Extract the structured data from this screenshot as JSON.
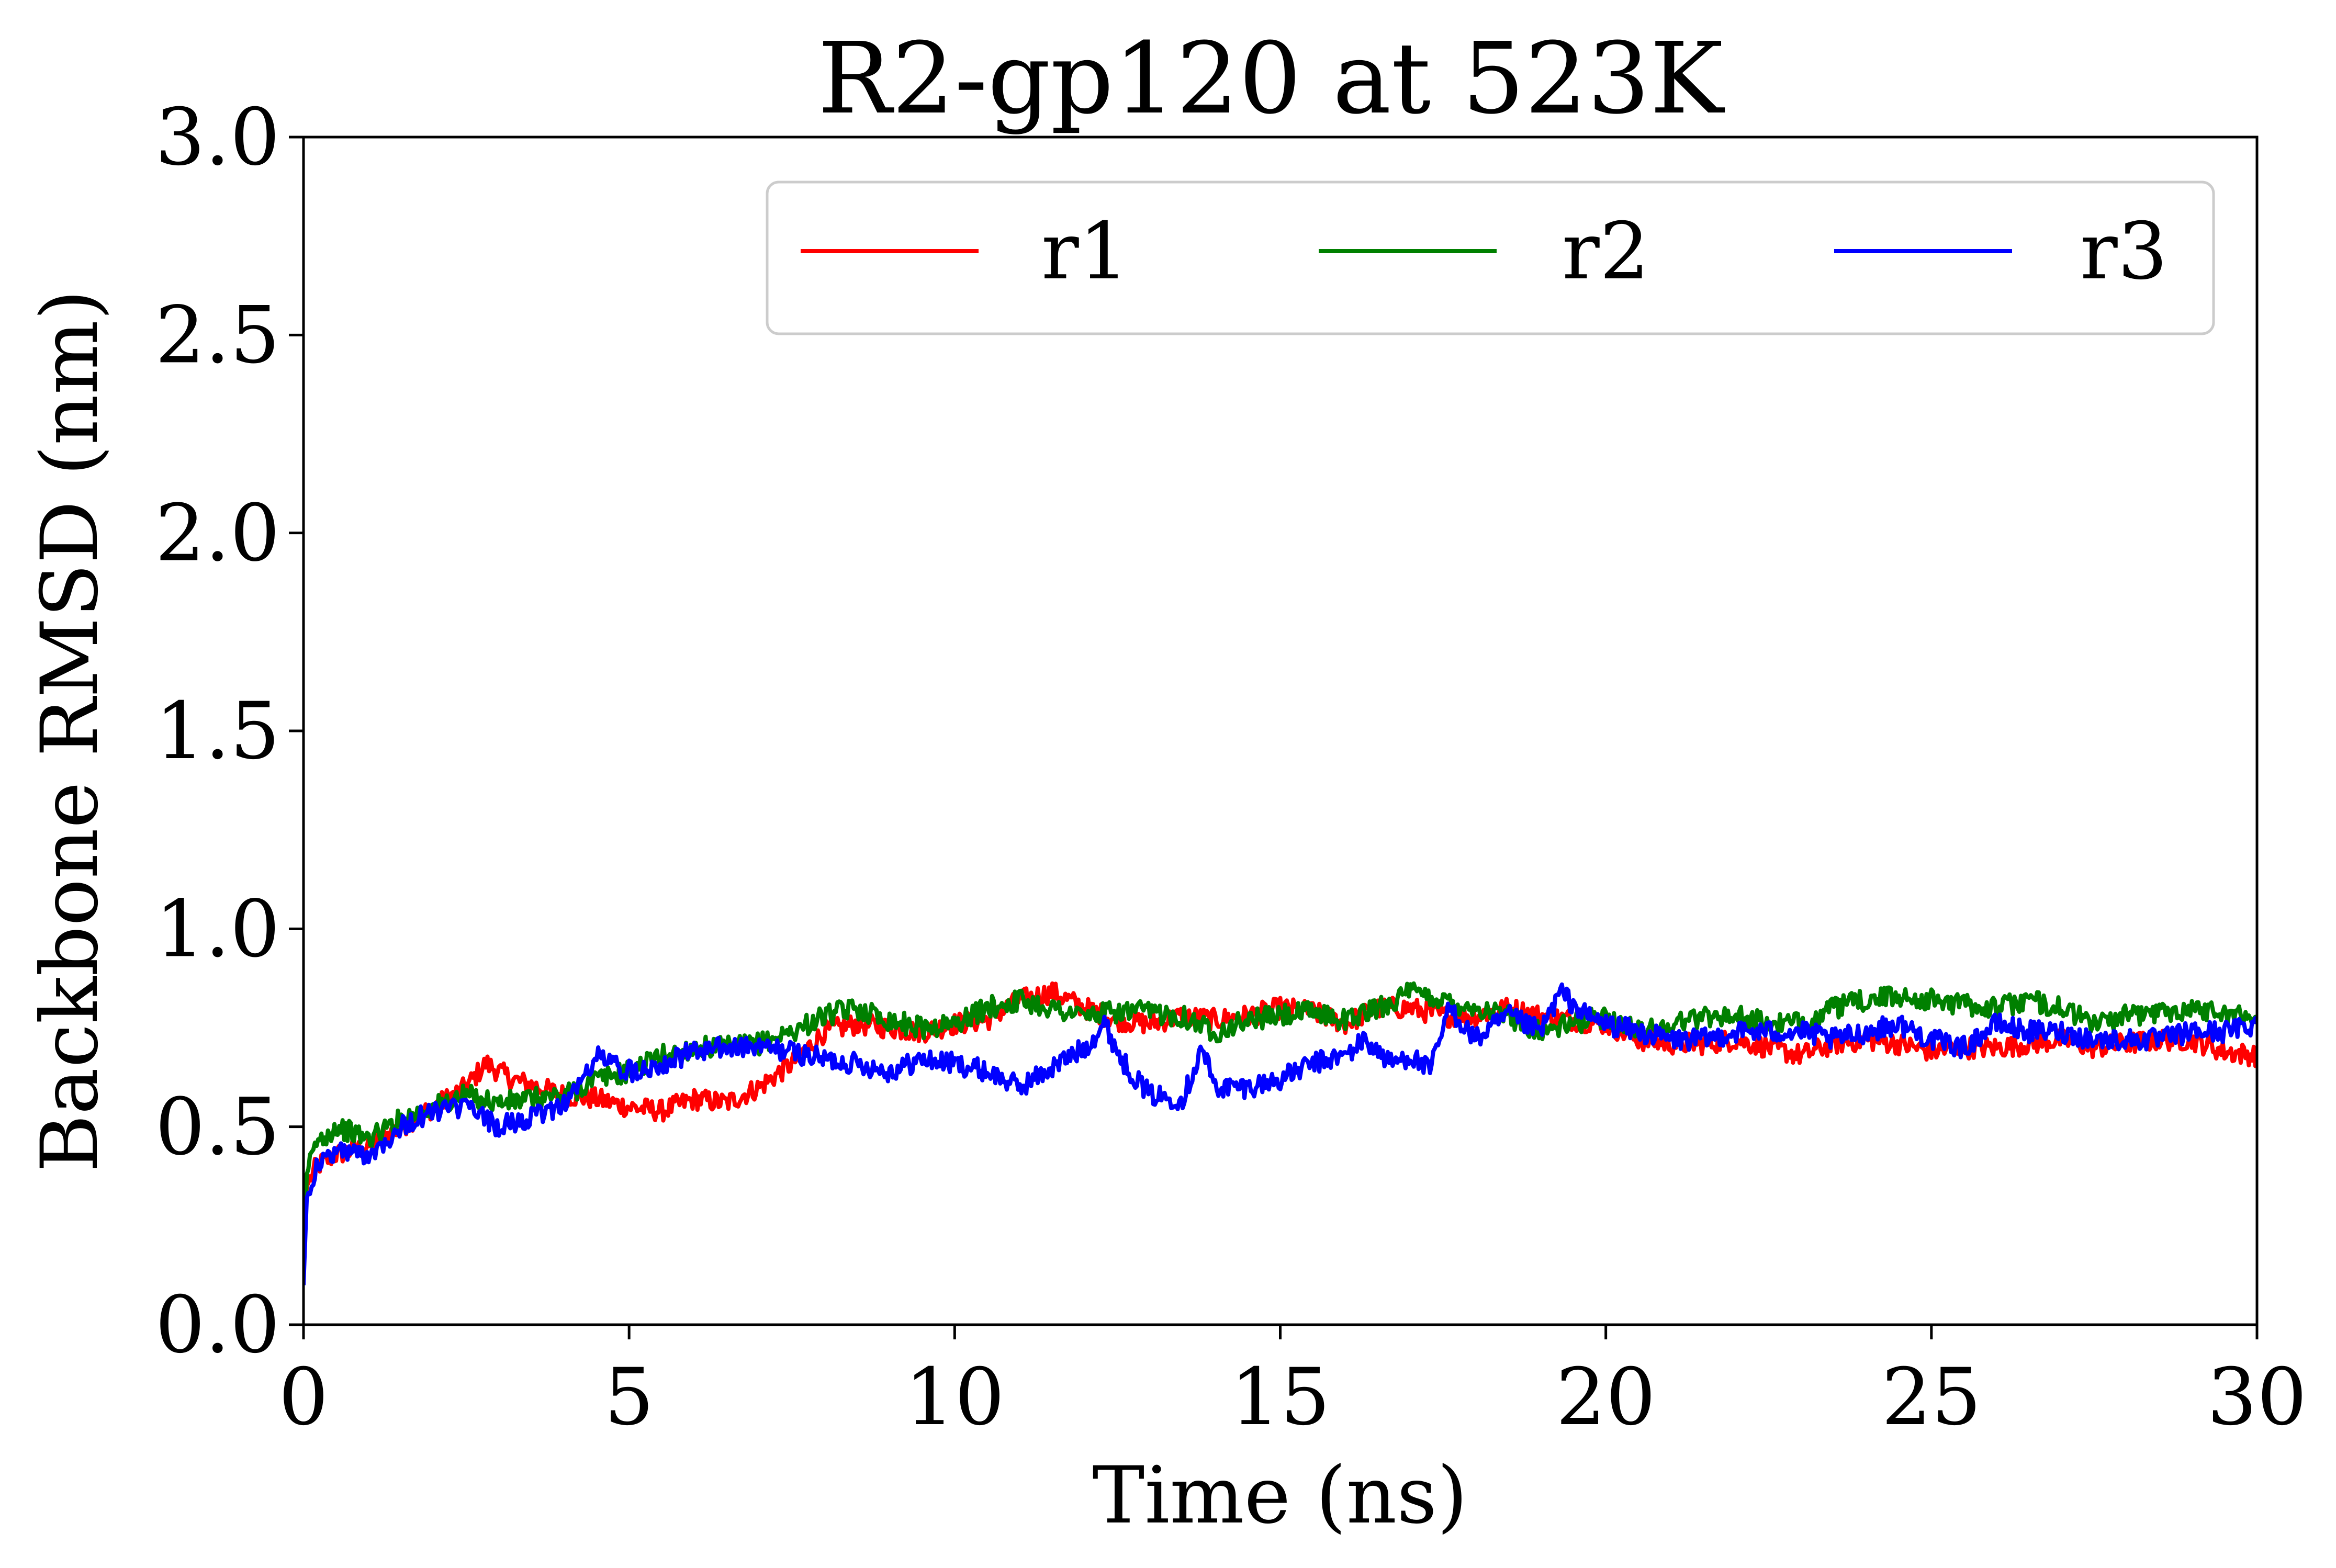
{
  "chart_data": {
    "type": "line",
    "title": "R2-gp120 at 523K",
    "xlabel": "Time (ns)",
    "ylabel": "Backbone RMSD (nm)",
    "xlim": [
      0,
      30
    ],
    "ylim": [
      0,
      3.0
    ],
    "xticks": [
      "0",
      "5",
      "10",
      "15",
      "20",
      "25",
      "30"
    ],
    "yticks": [
      "0.0",
      "0.5",
      "1.0",
      "1.5",
      "2.0",
      "2.5",
      "3.0"
    ],
    "grid": false,
    "legend": {
      "placement": "top-right",
      "columns": 3
    },
    "series": [
      {
        "name": "r1",
        "color": "#ff0000",
        "x": [
          0,
          0.05,
          0.2,
          0.5,
          1.0,
          1.5,
          2.0,
          2.5,
          2.8,
          3.2,
          3.6,
          4.0,
          4.5,
          5.0,
          5.5,
          6.0,
          6.5,
          7.0,
          7.5,
          8.0,
          8.5,
          9.0,
          9.5,
          10.0,
          10.5,
          11.0,
          11.5,
          12.0,
          12.5,
          13.0,
          13.5,
          14.0,
          14.5,
          15.0,
          15.5,
          16.0,
          16.5,
          17.0,
          17.5,
          18.0,
          18.5,
          19.0,
          19.5,
          20.0,
          20.5,
          21.0,
          21.5,
          22.0,
          22.5,
          23.0,
          23.5,
          24.0,
          24.5,
          25.0,
          25.5,
          26.0,
          26.5,
          27.0,
          27.5,
          28.0,
          28.5,
          29.0,
          29.5,
          30.0
        ],
        "y": [
          0.14,
          0.35,
          0.4,
          0.43,
          0.45,
          0.5,
          0.55,
          0.6,
          0.66,
          0.62,
          0.6,
          0.58,
          0.57,
          0.55,
          0.54,
          0.57,
          0.56,
          0.6,
          0.66,
          0.74,
          0.76,
          0.75,
          0.74,
          0.76,
          0.77,
          0.82,
          0.84,
          0.8,
          0.77,
          0.76,
          0.78,
          0.77,
          0.78,
          0.8,
          0.79,
          0.76,
          0.8,
          0.8,
          0.78,
          0.78,
          0.8,
          0.78,
          0.77,
          0.76,
          0.72,
          0.71,
          0.71,
          0.72,
          0.7,
          0.68,
          0.71,
          0.72,
          0.71,
          0.69,
          0.7,
          0.7,
          0.71,
          0.72,
          0.7,
          0.71,
          0.72,
          0.72,
          0.69,
          0.68
        ]
      },
      {
        "name": "r2",
        "color": "#008000",
        "x": [
          0,
          0.05,
          0.2,
          0.5,
          1.0,
          1.5,
          2.0,
          2.5,
          3.0,
          3.5,
          4.0,
          4.5,
          5.0,
          5.5,
          6.0,
          6.5,
          7.0,
          7.5,
          8.0,
          8.5,
          9.0,
          9.5,
          10.0,
          10.5,
          11.0,
          11.5,
          12.0,
          12.5,
          13.0,
          13.5,
          14.0,
          14.5,
          15.0,
          15.5,
          16.0,
          16.5,
          17.0,
          17.5,
          18.0,
          18.5,
          19.0,
          19.5,
          20.0,
          20.5,
          21.0,
          21.5,
          22.0,
          22.5,
          23.0,
          23.5,
          24.0,
          24.5,
          25.0,
          25.5,
          26.0,
          26.5,
          27.0,
          27.5,
          28.0,
          28.5,
          29.0,
          29.5,
          30.0
        ],
        "y": [
          0.12,
          0.38,
          0.46,
          0.5,
          0.47,
          0.52,
          0.55,
          0.58,
          0.56,
          0.57,
          0.58,
          0.62,
          0.64,
          0.68,
          0.7,
          0.7,
          0.71,
          0.74,
          0.78,
          0.8,
          0.77,
          0.75,
          0.76,
          0.8,
          0.82,
          0.8,
          0.78,
          0.79,
          0.79,
          0.78,
          0.74,
          0.77,
          0.78,
          0.79,
          0.77,
          0.8,
          0.84,
          0.82,
          0.8,
          0.78,
          0.74,
          0.76,
          0.78,
          0.74,
          0.76,
          0.78,
          0.78,
          0.76,
          0.76,
          0.8,
          0.82,
          0.83,
          0.82,
          0.81,
          0.8,
          0.82,
          0.8,
          0.76,
          0.78,
          0.79,
          0.8,
          0.79,
          0.77
        ]
      },
      {
        "name": "r3",
        "color": "#0000ff",
        "x": [
          0,
          0.05,
          0.2,
          0.5,
          1.0,
          1.5,
          2.0,
          2.5,
          3.0,
          3.5,
          4.0,
          4.3,
          4.5,
          5.0,
          5.5,
          6.0,
          6.5,
          7.0,
          7.5,
          8.0,
          8.5,
          9.0,
          9.5,
          10.0,
          10.5,
          11.0,
          11.5,
          12.0,
          12.3,
          12.6,
          13.0,
          13.5,
          13.8,
          14.0,
          14.5,
          15.0,
          15.5,
          16.0,
          16.3,
          16.7,
          17.0,
          17.3,
          17.6,
          18.0,
          18.5,
          19.0,
          19.3,
          19.7,
          20.0,
          20.5,
          21.0,
          21.5,
          22.0,
          22.5,
          23.0,
          23.5,
          24.0,
          24.5,
          25.0,
          25.5,
          26.0,
          26.5,
          27.0,
          27.5,
          28.0,
          28.5,
          29.0,
          29.5,
          30.0
        ],
        "y": [
          0.1,
          0.32,
          0.4,
          0.44,
          0.43,
          0.5,
          0.54,
          0.55,
          0.5,
          0.52,
          0.56,
          0.62,
          0.68,
          0.64,
          0.66,
          0.69,
          0.7,
          0.7,
          0.69,
          0.67,
          0.66,
          0.64,
          0.67,
          0.66,
          0.64,
          0.6,
          0.65,
          0.7,
          0.76,
          0.66,
          0.58,
          0.57,
          0.7,
          0.6,
          0.6,
          0.62,
          0.66,
          0.68,
          0.72,
          0.66,
          0.68,
          0.64,
          0.8,
          0.72,
          0.78,
          0.74,
          0.84,
          0.78,
          0.76,
          0.74,
          0.72,
          0.72,
          0.74,
          0.74,
          0.74,
          0.72,
          0.74,
          0.76,
          0.72,
          0.7,
          0.76,
          0.74,
          0.74,
          0.72,
          0.72,
          0.72,
          0.74,
          0.74,
          0.76
        ]
      }
    ]
  }
}
